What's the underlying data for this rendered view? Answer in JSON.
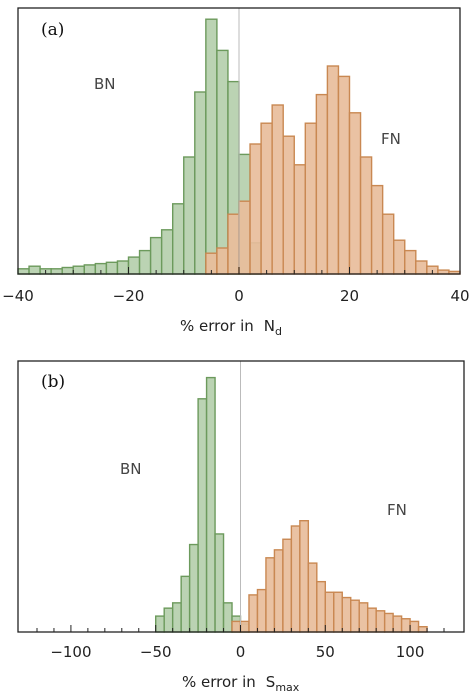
{
  "chart_data": [
    {
      "type": "bar",
      "panel_label": "(a)",
      "xlabel_prefix": "% error in",
      "xlabel_symbol": "N",
      "xlabel_subscript": "d",
      "xlim": [
        -40,
        40
      ],
      "xticks": [
        -40,
        -20,
        0,
        20,
        40
      ],
      "tick_labels": [
        "−40",
        "−20",
        "0",
        "20",
        "40"
      ],
      "minor_tick_step": 5,
      "bin_width": 2,
      "ymax": 100,
      "grid": false,
      "series": [
        {
          "name": "BN",
          "color": "#b5cfac",
          "edge": "#6c9a5c",
          "bins": [
            {
              "x0": -40,
              "value": 2
            },
            {
              "x0": -38,
              "value": 3
            },
            {
              "x0": -36,
              "value": 2
            },
            {
              "x0": -34,
              "value": 2
            },
            {
              "x0": -32,
              "value": 2.5
            },
            {
              "x0": -30,
              "value": 3
            },
            {
              "x0": -28,
              "value": 3.5
            },
            {
              "x0": -26,
              "value": 4
            },
            {
              "x0": -24,
              "value": 4.5
            },
            {
              "x0": -22,
              "value": 5
            },
            {
              "x0": -20,
              "value": 6.5
            },
            {
              "x0": -18,
              "value": 9
            },
            {
              "x0": -16,
              "value": 14
            },
            {
              "x0": -14,
              "value": 17
            },
            {
              "x0": -12,
              "value": 27
            },
            {
              "x0": -10,
              "value": 45
            },
            {
              "x0": -8,
              "value": 70
            },
            {
              "x0": -6,
              "value": 98
            },
            {
              "x0": -4,
              "value": 86
            },
            {
              "x0": -2,
              "value": 74
            },
            {
              "x0": 0,
              "value": 46
            },
            {
              "x0": 2,
              "value": 12
            }
          ]
        },
        {
          "name": "FN",
          "color": "#e8bd9b",
          "edge": "#c98852",
          "bins": [
            {
              "x0": -6,
              "value": 8
            },
            {
              "x0": -4,
              "value": 10
            },
            {
              "x0": -2,
              "value": 23
            },
            {
              "x0": 0,
              "value": 28
            },
            {
              "x0": 2,
              "value": 50
            },
            {
              "x0": 4,
              "value": 58
            },
            {
              "x0": 6,
              "value": 65
            },
            {
              "x0": 8,
              "value": 53
            },
            {
              "x0": 10,
              "value": 42
            },
            {
              "x0": 12,
              "value": 58
            },
            {
              "x0": 14,
              "value": 69
            },
            {
              "x0": 16,
              "value": 80
            },
            {
              "x0": 18,
              "value": 76
            },
            {
              "x0": 20,
              "value": 62
            },
            {
              "x0": 22,
              "value": 45
            },
            {
              "x0": 24,
              "value": 34
            },
            {
              "x0": 26,
              "value": 23
            },
            {
              "x0": 28,
              "value": 13
            },
            {
              "x0": 30,
              "value": 9
            },
            {
              "x0": 32,
              "value": 5
            },
            {
              "x0": 34,
              "value": 3
            },
            {
              "x0": 36,
              "value": 1.5
            },
            {
              "x0": 38,
              "value": 1
            }
          ]
        }
      ]
    },
    {
      "type": "bar",
      "panel_label": "(b)",
      "xlabel_prefix": "% error in",
      "xlabel_symbol": "S",
      "xlabel_subscript": "max",
      "xlim": [
        -120,
        120
      ],
      "xticks": [
        -100,
        -50,
        0,
        50,
        100
      ],
      "tick_labels": [
        "−100",
        "−50",
        "0",
        "50",
        "100"
      ],
      "minor_tick_step": 10,
      "bin_width": 5,
      "ymax": 100,
      "grid": false,
      "series": [
        {
          "name": "BN",
          "color": "#b5cfac",
          "edge": "#6c9a5c",
          "bins": [
            {
              "x0": -50,
              "value": 6
            },
            {
              "x0": -45,
              "value": 9
            },
            {
              "x0": -40,
              "value": 11
            },
            {
              "x0": -35,
              "value": 21
            },
            {
              "x0": -30,
              "value": 33
            },
            {
              "x0": -25,
              "value": 88
            },
            {
              "x0": -20,
              "value": 96
            },
            {
              "x0": -15,
              "value": 37
            },
            {
              "x0": -10,
              "value": 11
            },
            {
              "x0": -5,
              "value": 6
            },
            {
              "x0": 0,
              "value": 3
            }
          ]
        },
        {
          "name": "FN",
          "color": "#e8bd9b",
          "edge": "#c98852",
          "bins": [
            {
              "x0": -5,
              "value": 4
            },
            {
              "x0": 0,
              "value": 4
            },
            {
              "x0": 5,
              "value": 14
            },
            {
              "x0": 10,
              "value": 16
            },
            {
              "x0": 15,
              "value": 28
            },
            {
              "x0": 20,
              "value": 31
            },
            {
              "x0": 25,
              "value": 35
            },
            {
              "x0": 30,
              "value": 40
            },
            {
              "x0": 35,
              "value": 42
            },
            {
              "x0": 40,
              "value": 26
            },
            {
              "x0": 45,
              "value": 19
            },
            {
              "x0": 50,
              "value": 15
            },
            {
              "x0": 55,
              "value": 15
            },
            {
              "x0": 60,
              "value": 13
            },
            {
              "x0": 65,
              "value": 12
            },
            {
              "x0": 70,
              "value": 11
            },
            {
              "x0": 75,
              "value": 9
            },
            {
              "x0": 80,
              "value": 8
            },
            {
              "x0": 85,
              "value": 7
            },
            {
              "x0": 90,
              "value": 6
            },
            {
              "x0": 95,
              "value": 5
            },
            {
              "x0": 100,
              "value": 4
            },
            {
              "x0": 105,
              "value": 2
            }
          ]
        }
      ]
    }
  ]
}
